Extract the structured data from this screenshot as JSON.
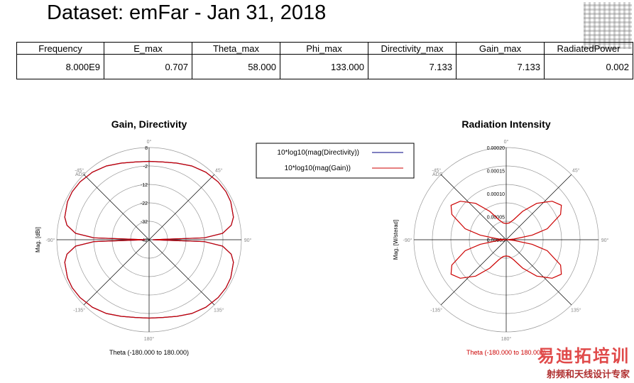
{
  "page_title": "Dataset: emFar - Jan 31, 2018",
  "table": {
    "headers": [
      "Frequency",
      "E_max",
      "Theta_max",
      "Phi_max",
      "Directivity_max",
      "Gain_max",
      "RadiatedPower"
    ],
    "row": [
      "8.000E9",
      "0.707",
      "58.000",
      "133.000",
      "7.133",
      "7.133",
      "0.002"
    ]
  },
  "watermark": {
    "brand": "易迪拓培训",
    "tagline": "射频和天线设计专家"
  },
  "chart_data": [
    {
      "type": "polar",
      "title": "Gain, Directivity",
      "ylabel": "Mag. [dBi]",
      "xlabel": "Theta (-180.000 to 180.000)",
      "mark": "ADS",
      "radial_ticks": [
        "8",
        "-2",
        "-12",
        "-22",
        "-32",
        "-42"
      ],
      "radial_range": [
        -42,
        8
      ],
      "angle_labels": {
        "top": "0°",
        "right": "90°",
        "bottom": "180°",
        "left": "-90°",
        "top_right": "45°",
        "bottom_right": "135°",
        "bottom_left": "-135°",
        "top_left": "-45°"
      },
      "series": [
        {
          "name": "10*log10(mag(Directivity))",
          "color": "#000080"
        },
        {
          "name": "10*log10(mag(Gain))",
          "color": "#cc0000"
        }
      ],
      "theta_deg": [
        0,
        10,
        20,
        30,
        40,
        50,
        58,
        65,
        75,
        80,
        85,
        88,
        90,
        92,
        95,
        100,
        105,
        115,
        122,
        130,
        140,
        150,
        160,
        170,
        180
      ],
      "values": [
        0.5,
        0.8,
        2.2,
        4.2,
        5.8,
        6.8,
        7.133,
        6.8,
        5.3,
        3.2,
        -2.0,
        -12.0,
        -40.0,
        -12.0,
        -2.0,
        3.2,
        5.3,
        6.8,
        7.133,
        6.8,
        5.8,
        4.2,
        2.2,
        0.8,
        0.5
      ],
      "note": "Gain and Directivity curves coincide; symmetric in theta."
    },
    {
      "type": "polar",
      "title": "Radiation Intensity",
      "ylabel": "Mag. [W/sterad]",
      "xlabel": "Theta (-180.000 to 180.000)",
      "mark": "ADS",
      "radial_ticks": [
        "0.00020",
        "0.00015",
        "0.00010",
        "0.00005",
        "0.00000"
      ],
      "radial_range": [
        0,
        0.0002
      ],
      "angle_labels": {
        "top": "0°",
        "right": "90°",
        "bottom": "180°",
        "left": "-90°",
        "top_right": "45°",
        "bottom_right": "135°",
        "bottom_left": "-135°",
        "top_left": "-45°"
      },
      "series": [
        {
          "name": "Radiation Intensity",
          "color": "#cc0000"
        }
      ],
      "theta_deg": [
        0,
        10,
        20,
        30,
        40,
        50,
        58,
        65,
        75,
        80,
        85,
        88,
        90,
        92,
        95,
        100,
        105,
        115,
        122,
        130,
        140,
        150,
        160,
        170,
        180
      ],
      "values": [
        3.52e-05,
        3.69e-05,
        4.58e-05,
        7.1e-05,
        0.000103,
        0.00013,
        0.000141,
        0.00013,
        9.2e-05,
        5.7e-05,
        1.7e-05,
        1.7e-06,
        0.0,
        1.7e-06,
        1.7e-05,
        5.7e-05,
        9.2e-05,
        0.00013,
        0.000141,
        0.00013,
        0.000103,
        7.1e-05,
        4.58e-05,
        3.69e-05,
        3.52e-05
      ]
    }
  ]
}
